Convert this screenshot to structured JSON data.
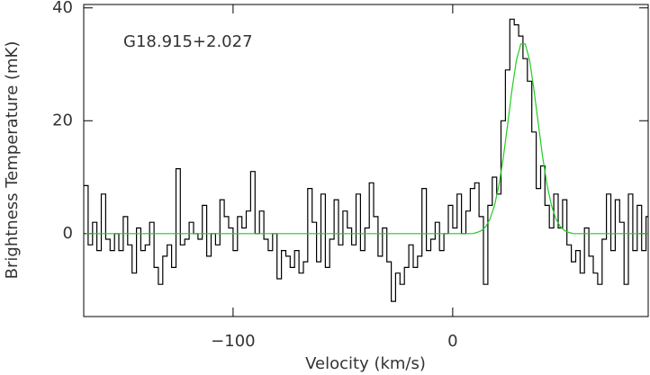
{
  "chart_data": {
    "type": "step",
    "annotation": "G18.915+2.027",
    "xlabel": "Velocity (km/s)",
    "ylabel": "Brightness Temperature (mK)",
    "xlim": [
      -168,
      89
    ],
    "ylim": [
      -14.7,
      40.6
    ],
    "xticks": [
      {
        "value": -100,
        "label": "−100"
      },
      0
    ],
    "yticks": [
      0,
      20,
      40
    ],
    "x": [
      -167,
      -165,
      -163,
      -161,
      -159,
      -157,
      -155,
      -153,
      -151,
      -149,
      -147,
      -145,
      -143,
      -141,
      -139,
      -137,
      -135,
      -133,
      -131,
      -129,
      -127,
      -125,
      -123,
      -121,
      -119,
      -117,
      -115,
      -113,
      -111,
      -109,
      -107,
      -105,
      -103,
      -101,
      -99,
      -97,
      -95,
      -93,
      -91,
      -89,
      -87,
      -85,
      -83,
      -81,
      -79,
      -77,
      -75,
      -73,
      -71,
      -69,
      -67,
      -65,
      -63,
      -61,
      -59,
      -57,
      -55,
      -53,
      -51,
      -49,
      -47,
      -45,
      -43,
      -41,
      -39,
      -37,
      -35,
      -33,
      -31,
      -29,
      -27,
      -25,
      -23,
      -21,
      -19,
      -17,
      -15,
      -13,
      -11,
      -9,
      -7,
      -5,
      -3,
      -1,
      1,
      3,
      5,
      7,
      9,
      11,
      13,
      15,
      17,
      19,
      21,
      23,
      25,
      27,
      29,
      31,
      33,
      35,
      37,
      39,
      41,
      43,
      45,
      47,
      49,
      51,
      53,
      55,
      57,
      59,
      61,
      63,
      65,
      67,
      69,
      71,
      73,
      75,
      77,
      79,
      81,
      83,
      85,
      87,
      89
    ],
    "series": [
      {
        "color": "#000000",
        "values": [
          8.5,
          -2,
          2,
          -3,
          7,
          -1,
          -3,
          0,
          -3,
          3,
          -2,
          -7,
          1,
          -3,
          -2,
          2,
          -6,
          -9,
          -4,
          -2,
          -6,
          11.5,
          -2,
          -1,
          2,
          0,
          -1,
          5,
          -4,
          0,
          -2,
          6,
          3,
          1,
          -3,
          3,
          1,
          4,
          11,
          0,
          4,
          -1,
          -3,
          0,
          -8,
          -3,
          -4,
          -6,
          -3,
          -7,
          -5,
          8,
          2,
          -5,
          7,
          -6,
          -1,
          6,
          -2,
          4,
          1,
          -2,
          7,
          -3,
          1,
          9,
          3,
          -4,
          1,
          -5,
          -12,
          -7,
          -9,
          -6,
          -2,
          -6,
          -4,
          8,
          -3,
          -1,
          2,
          -3,
          0,
          5,
          1,
          7,
          0,
          4,
          8,
          9,
          3,
          -9,
          5,
          10,
          7,
          20,
          29,
          38,
          37,
          35,
          31,
          27,
          18,
          8,
          12,
          5,
          1,
          7,
          1,
          6,
          -2,
          -5,
          -3,
          -7,
          1,
          -4,
          -7,
          -9,
          -1,
          7,
          -3,
          6,
          2,
          -9,
          7,
          -3,
          5,
          -3,
          3
        ]
      },
      {
        "color": "#22cc22",
        "values": [
          0,
          0,
          0,
          0,
          0,
          0,
          0,
          0,
          0,
          0,
          0,
          0,
          0,
          0,
          0,
          0,
          0,
          0,
          0,
          0,
          0,
          0,
          0,
          0,
          0,
          0,
          0,
          0,
          0,
          0,
          0,
          0,
          0,
          0,
          0,
          0,
          0,
          0,
          0,
          0,
          0,
          0,
          0,
          0,
          0,
          0,
          0,
          0,
          0,
          0,
          0,
          0,
          0,
          0,
          0,
          0,
          0,
          0,
          0,
          0,
          0,
          0,
          0,
          0,
          0,
          0,
          0,
          0,
          0,
          0,
          0,
          0,
          0,
          0,
          0,
          0,
          0,
          0,
          0,
          0,
          0,
          0,
          0,
          0,
          0,
          0,
          0,
          0,
          0,
          0.2,
          0.5,
          1.2,
          2.6,
          4.9,
          8.5,
          13.4,
          19.4,
          25.5,
          30.7,
          33.6,
          33.6,
          30.7,
          25.5,
          19.4,
          13.4,
          8.5,
          4.9,
          2.6,
          1.2,
          0.5,
          0.2,
          0,
          0,
          0,
          0,
          0,
          0,
          0,
          0,
          0,
          0,
          0,
          0,
          0,
          0,
          0,
          0,
          0,
          0
        ]
      }
    ]
  }
}
